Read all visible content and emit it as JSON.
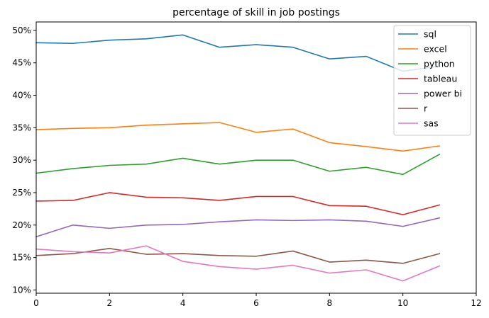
{
  "chart_data": {
    "type": "line",
    "title": "percentage of skill in job postings",
    "xlabel": "",
    "ylabel": "",
    "xlim": [
      0,
      12
    ],
    "ylim": [
      9.5,
      51.3
    ],
    "x_ticks": [
      0,
      2,
      4,
      6,
      8,
      10,
      12
    ],
    "y_ticks": [
      10,
      15,
      20,
      25,
      30,
      35,
      40,
      45,
      50
    ],
    "y_tick_suffix": "%",
    "grid": false,
    "legend_position": "top-right",
    "x": [
      0,
      1,
      2,
      3,
      4,
      5,
      6,
      7,
      8,
      9,
      10,
      11
    ],
    "series": [
      {
        "name": "sql",
        "color": "#1f77b4",
        "values": [
          48.1,
          48.0,
          48.5,
          48.7,
          49.3,
          47.4,
          47.8,
          47.4,
          45.6,
          46.0,
          43.7,
          44.5
        ]
      },
      {
        "name": "excel",
        "color": "#ff7f0e",
        "values": [
          34.7,
          34.9,
          35.0,
          35.4,
          35.6,
          35.8,
          34.3,
          34.8,
          32.7,
          32.1,
          31.4,
          32.2
        ]
      },
      {
        "name": "python",
        "color": "#2ca02c",
        "values": [
          28.0,
          28.7,
          29.2,
          29.4,
          30.3,
          29.4,
          30.0,
          30.0,
          28.3,
          28.9,
          27.8,
          30.9
        ]
      },
      {
        "name": "tableau",
        "color": "#d62728",
        "values": [
          23.7,
          23.8,
          25.0,
          24.3,
          24.2,
          23.8,
          24.4,
          24.4,
          23.0,
          22.9,
          21.6,
          23.1
        ]
      },
      {
        "name": "power bi",
        "color": "#9467bd",
        "values": [
          18.2,
          20.0,
          19.5,
          20.0,
          20.1,
          20.5,
          20.8,
          20.7,
          20.8,
          20.6,
          19.8,
          21.1
        ]
      },
      {
        "name": "r",
        "color": "#8c564b",
        "values": [
          15.3,
          15.6,
          16.4,
          15.5,
          15.6,
          15.3,
          15.2,
          16.0,
          14.3,
          14.6,
          14.1,
          15.6
        ]
      },
      {
        "name": "sas",
        "color": "#e377c2",
        "values": [
          16.3,
          15.9,
          15.7,
          16.8,
          14.4,
          13.6,
          13.2,
          13.8,
          12.6,
          13.1,
          11.4,
          13.7
        ]
      }
    ]
  }
}
